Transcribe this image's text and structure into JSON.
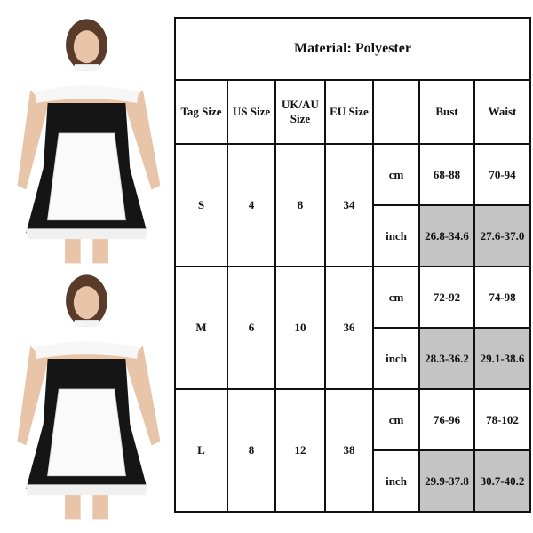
{
  "title": "Material: Polyester",
  "headers": [
    "Tag Size",
    "US Size",
    "UK/AU Size",
    "EU Size",
    "",
    "Bust",
    "Waist"
  ],
  "units": [
    "cm",
    "inch"
  ],
  "rows": [
    {
      "tag": "S",
      "us": "4",
      "ukau": "8",
      "eu": "34",
      "cm": {
        "bust": "68-88",
        "waist": "70-94"
      },
      "inch": {
        "bust": "26.8-34.6",
        "waist": "27.6-37.0"
      }
    },
    {
      "tag": "M",
      "us": "6",
      "ukau": "10",
      "eu": "36",
      "cm": {
        "bust": "72-92",
        "waist": "74-98"
      },
      "inch": {
        "bust": "28.3-36.2",
        "waist": "29.1-38.6"
      }
    },
    {
      "tag": "L",
      "us": "8",
      "ukau": "12",
      "eu": "38",
      "cm": {
        "bust": "76-96",
        "waist": "78-102"
      },
      "inch": {
        "bust": "29.9-37.8",
        "waist": "30.7-40.2"
      }
    }
  ],
  "colors": {
    "inch_cell_bg": "#c4c4c4",
    "border": "#111111"
  }
}
